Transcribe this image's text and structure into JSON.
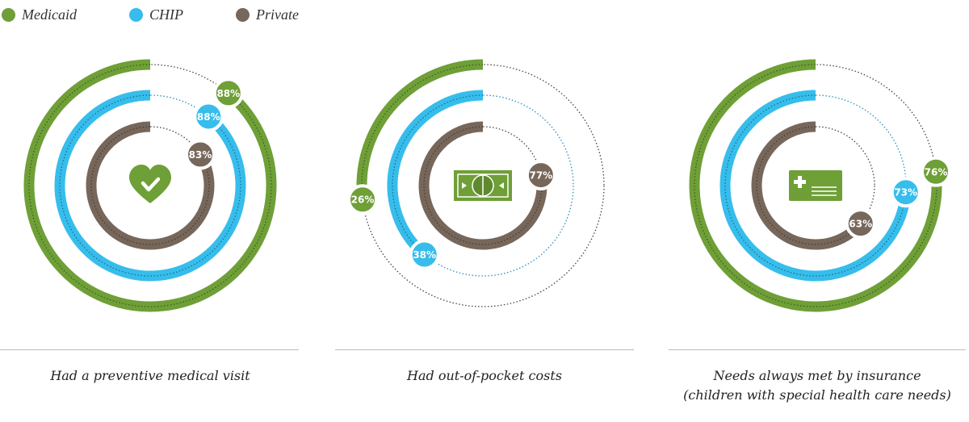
{
  "chart_data": {
    "type": "radial-bar",
    "legend": {
      "placement": "top-left",
      "entries": [
        {
          "name": "Medicaid",
          "color": "#6f9f37"
        },
        {
          "name": "CHIP",
          "color": "#36bdec"
        },
        {
          "name": "Private",
          "color": "#77675b"
        }
      ]
    },
    "charts": [
      {
        "caption": [
          "Had a preventive medical visit"
        ],
        "icon": "heart-check-icon",
        "values": [
          88,
          88,
          83
        ],
        "labels": [
          "88%",
          "88%",
          "83%"
        ]
      },
      {
        "caption": [
          "Had out-of-pocket costs"
        ],
        "icon": "money-bill-icon",
        "values": [
          26,
          38,
          77
        ],
        "labels": [
          "26%",
          "38%",
          "77%"
        ]
      },
      {
        "caption": [
          "Needs always met by insurance",
          "(children with special health care needs)"
        ],
        "icon": "insurance-card-icon",
        "values": [
          76,
          73,
          63
        ],
        "labels": [
          "76%",
          "73%",
          "63%"
        ]
      }
    ]
  }
}
